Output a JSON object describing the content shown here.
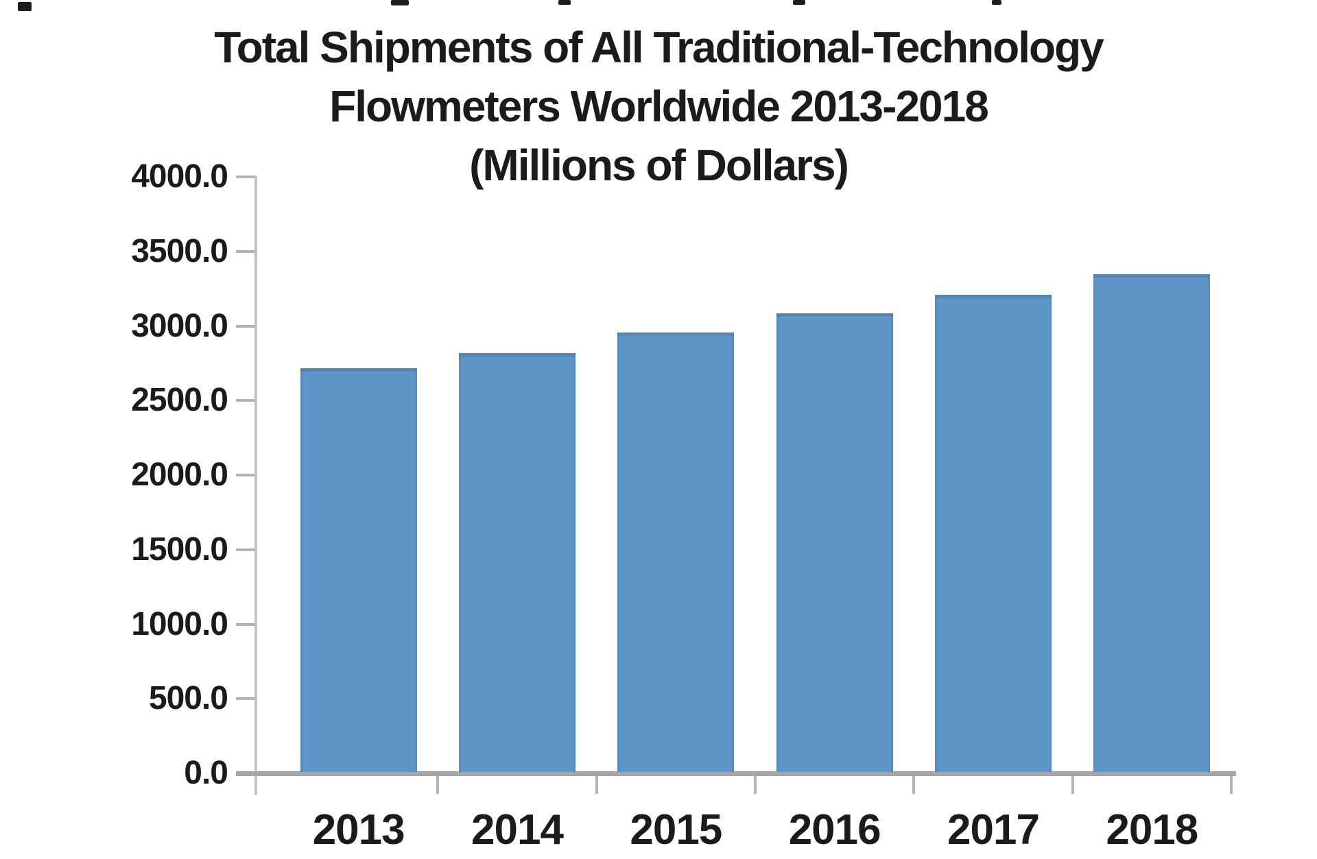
{
  "chart_data": {
    "type": "bar",
    "title_lines": [
      "Total Shipments of All Traditional-Technology",
      "Flowmeters Worldwide 2013-2018",
      "(Millions of Dollars)"
    ],
    "title": "Total Shipments of All Traditional-Technology Flowmeters Worldwide 2013-2018 (Millions of Dollars)",
    "categories": [
      "2013",
      "2014",
      "2015",
      "2016",
      "2017",
      "2018"
    ],
    "values": [
      2715,
      2820,
      2955,
      3085,
      3210,
      3345
    ],
    "xlabel": "",
    "ylabel": "",
    "unit": "Millions of Dollars",
    "ylim": [
      0,
      4000
    ],
    "ytick_step": 500,
    "ytick_labels": [
      "0.0",
      "500.0",
      "1000.0",
      "1500.0",
      "2000.0",
      "2500.0",
      "3000.0",
      "3500.0",
      "4000.0"
    ],
    "grid": false,
    "legend": false,
    "bar_color": "#5d95c9",
    "axis_line_color": "#c6c6c6",
    "baseline_color": "#a6a6a6",
    "tick_color": "#b3b3b3",
    "text_color": "#1b1b1b"
  }
}
